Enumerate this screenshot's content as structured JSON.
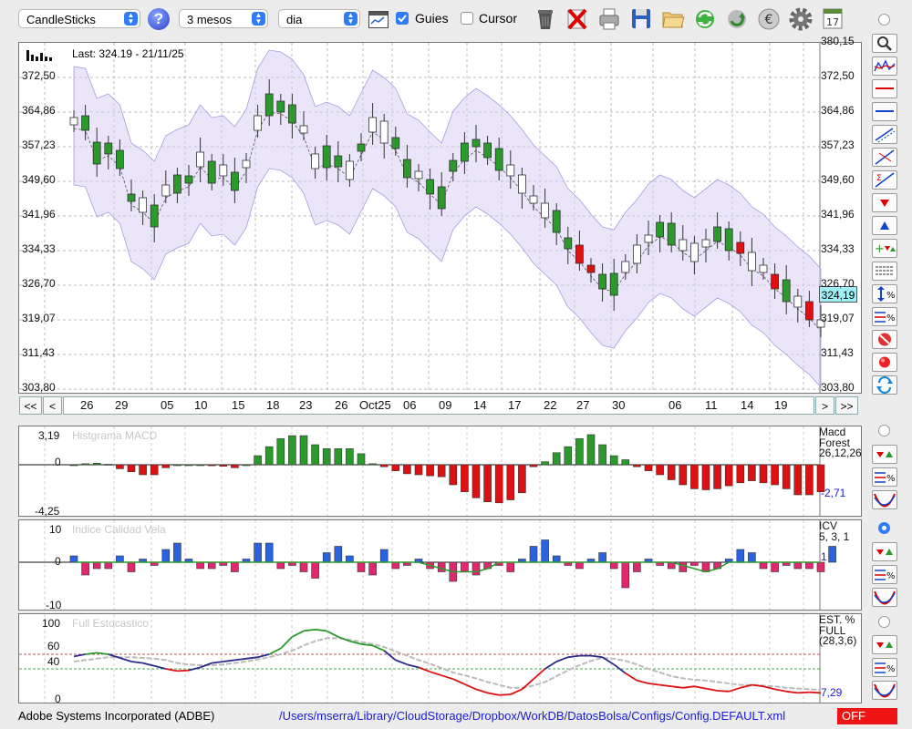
{
  "toolbar": {
    "symbol_select": "CandleSticks",
    "period_select": "3 mesos",
    "interval_select": "dia",
    "guides_label": "Guies",
    "guides_checked": true,
    "cursor_label": "Cursor",
    "cursor_checked": false,
    "icons": [
      "help-icon",
      "chart-settings-icon",
      "trash-icon",
      "delete-icon",
      "print-icon",
      "save-icon",
      "open-folder-icon",
      "refresh-icon",
      "sync-icon",
      "euro-icon",
      "gear-icon",
      "calendar-icon"
    ],
    "calendar_day": "17"
  },
  "main_chart": {
    "last_label": "Last: 324.19 - 21/11/25",
    "current_price": "324,19",
    "y_ticks": [
      "380,15",
      "372,50",
      "364,86",
      "357,23",
      "349,60",
      "341,96",
      "334,33",
      "326,70",
      "319,07",
      "311,43",
      "303,80"
    ],
    "dates": [
      "26",
      "29",
      "05",
      "10",
      "15",
      "18",
      "23",
      "26",
      "Oct25",
      "06",
      "09",
      "14",
      "17",
      "22",
      "27",
      "30",
      "06",
      "11",
      "14",
      "19"
    ],
    "nav": {
      "first": "<<",
      "prev": "<",
      "next": ">",
      "last": ">>"
    }
  },
  "macd": {
    "title": "Histgrama MACD",
    "y_ticks": [
      "3,19",
      "0",
      "-4,25"
    ],
    "legend": [
      "Macd",
      "Forest",
      "26,12,26"
    ],
    "value": "-2,71",
    "values": [
      0,
      0.1,
      0.15,
      0.05,
      -0.4,
      -0.7,
      -1.0,
      -1.0,
      -0.3,
      0,
      0,
      0,
      -0.1,
      -0.15,
      -0.3,
      0,
      0.9,
      1.8,
      2.6,
      2.9,
      2.9,
      2.0,
      1.6,
      1.6,
      1.6,
      1.1,
      0.1,
      -0.2,
      -0.6,
      -0.9,
      -1.0,
      -1.1,
      -1.2,
      -2.0,
      -2.7,
      -3.3,
      -3.7,
      -3.8,
      -3.5,
      -2.8,
      -0.2,
      0.3,
      1.2,
      1.8,
      2.6,
      3.0,
      2.0,
      0.9,
      0.5,
      -0.2,
      -0.6,
      -1.0,
      -1.5,
      -2.0,
      -2.4,
      -2.5,
      -2.4,
      -2.1,
      -1.8,
      -1.6,
      -1.8,
      -2.0,
      -2.4,
      -3.0,
      -3.0,
      -2.7
    ]
  },
  "icv": {
    "title": "Indice Calidad Vela",
    "y_ticks": [
      "10",
      "0",
      "-10"
    ],
    "legend": [
      "ICV",
      "5, 3, 1"
    ],
    "value": "1",
    "values": [
      2,
      -4,
      -2,
      -2,
      2,
      -3,
      1,
      -1,
      4,
      6,
      1,
      -2,
      -2,
      -1,
      -3,
      1,
      6,
      6,
      -2,
      -1,
      -3,
      -5,
      3,
      5,
      2,
      -3,
      -4,
      4,
      -2,
      -1,
      1,
      -2,
      -3,
      -6,
      -3,
      -4,
      -2,
      -1,
      -3,
      1,
      5,
      7,
      2,
      -1,
      -2,
      1,
      3,
      -2,
      -8,
      -3,
      1,
      -1,
      -2,
      -3,
      -1,
      -3,
      -2,
      1,
      4,
      3,
      -2,
      -3,
      -1,
      -2,
      -2,
      -3,
      5
    ],
    "signal": [
      0,
      0,
      0,
      0,
      0,
      0,
      0,
      0,
      0,
      0,
      0,
      0,
      0,
      0,
      0,
      0,
      0,
      0,
      0,
      0,
      0,
      0,
      0,
      0,
      0,
      0,
      0,
      0,
      0,
      0,
      0,
      -1,
      -2,
      -3,
      -3,
      -3,
      -2,
      0,
      0,
      0,
      0,
      0,
      0,
      0,
      0,
      0,
      0,
      0,
      0,
      0,
      0,
      0,
      0,
      -1,
      -2,
      -3,
      -2,
      0,
      0,
      0,
      0,
      0,
      0,
      0,
      0,
      0
    ]
  },
  "stoch": {
    "title": "Full Estocastico",
    "y_ticks": [
      "100",
      "60",
      "40",
      "0"
    ],
    "legend": [
      "EST. %",
      "FULL",
      "(28,3,6)"
    ],
    "value": "7,29",
    "k": [
      57,
      60,
      62,
      60,
      55,
      50,
      48,
      44,
      40,
      37,
      38,
      42,
      48,
      50,
      52,
      54,
      56,
      60,
      68,
      84,
      92,
      94,
      92,
      84,
      78,
      74,
      72,
      65,
      52,
      46,
      42,
      36,
      31,
      26,
      19,
      12,
      7,
      4,
      5,
      12,
      26,
      40,
      50,
      56,
      58,
      58,
      56,
      46,
      34,
      24,
      20,
      18,
      16,
      14,
      16,
      13,
      10,
      9,
      14,
      18,
      16,
      12,
      9,
      7,
      8,
      7
    ],
    "d": [
      50,
      52,
      54,
      56,
      56,
      56,
      55,
      54,
      52,
      48,
      46,
      45,
      45,
      46,
      48,
      50,
      53,
      56,
      60,
      65,
      72,
      78,
      82,
      82,
      80,
      77,
      74,
      70,
      64,
      58,
      52,
      47,
      41,
      35,
      31,
      27,
      22,
      18,
      14,
      14,
      17,
      22,
      30,
      38,
      45,
      51,
      55,
      54,
      51,
      46,
      40,
      35,
      30,
      27,
      25,
      24,
      22,
      20,
      18,
      18,
      17,
      16,
      14,
      13,
      12,
      11
    ]
  },
  "status": {
    "company": "Adobe Systems Incorporated (ADBE)",
    "config_path": "/Users/mserra/Library/CloudStorage/Dropbox/WorkDB/DatosBolsa/Configs/Config.DEFAULT.xml",
    "toggle": "OFF"
  },
  "colors": {
    "up": "#2a9a2a",
    "down": "#dd1111",
    "band": "#d9d0f4",
    "accent": "#2f7cf6"
  }
}
